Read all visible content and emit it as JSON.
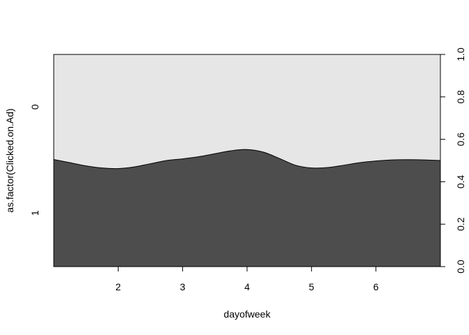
{
  "chart_data": {
    "type": "area",
    "subtype": "conditional density plot",
    "xlabel": "dayofweek",
    "ylabel": "as.factor(Clicked.on.Ad)",
    "xlim": [
      1,
      7
    ],
    "ylim": [
      0,
      1
    ],
    "x_ticks": [
      2,
      3,
      4,
      5,
      6
    ],
    "y_ticks_right": [
      "0.0",
      "0.2",
      "0.4",
      "0.6",
      "0.8",
      "1.0"
    ],
    "category_labels": [
      "0",
      "1"
    ],
    "series": [
      {
        "name": "1",
        "x": [
          1.0,
          1.25,
          1.5,
          1.75,
          2.0,
          2.25,
          2.5,
          2.75,
          3.0,
          3.25,
          3.5,
          3.75,
          4.0,
          4.25,
          4.5,
          4.75,
          5.0,
          5.25,
          5.5,
          5.75,
          6.0,
          6.25,
          6.5,
          6.75,
          7.0
        ],
        "values": [
          0.505,
          0.49,
          0.475,
          0.465,
          0.462,
          0.47,
          0.485,
          0.5,
          0.508,
          0.518,
          0.532,
          0.546,
          0.552,
          0.54,
          0.51,
          0.478,
          0.465,
          0.467,
          0.478,
          0.49,
          0.498,
          0.503,
          0.504,
          0.503,
          0.5
        ],
        "color": "#4d4d4d"
      },
      {
        "name": "0",
        "color": "#e6e6e6"
      }
    ],
    "grid": false
  }
}
